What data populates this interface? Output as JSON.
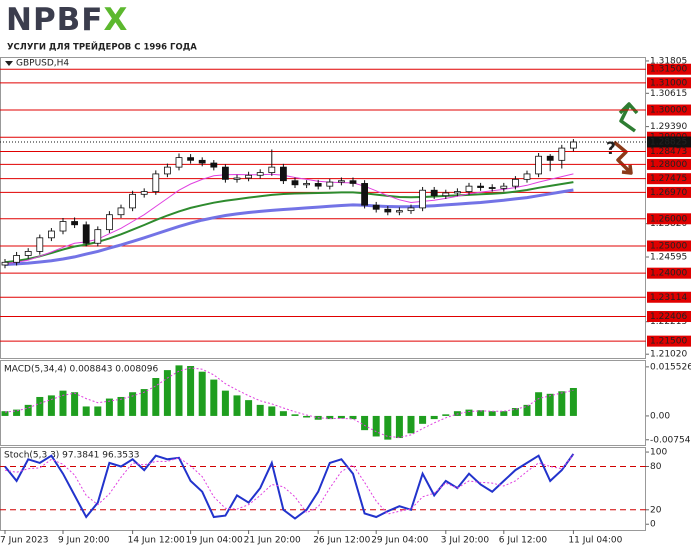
{
  "brand": {
    "name": [
      "NPBF",
      "X"
    ],
    "tagline": "УСЛУГИ ДЛЯ ТРЕЙДЕРОВ С 1996 ГОДА"
  },
  "chart_data": [
    {
      "type": "candlestick",
      "symbol": "GBPUSD,H4",
      "annotation": "?",
      "categories": [
        "7 Jun 2023",
        null,
        null,
        null,
        null,
        "9 Jun 20:00",
        null,
        null,
        null,
        null,
        null,
        "14 Jun 12:00",
        null,
        null,
        null,
        null,
        "19 Jun 04:00",
        null,
        null,
        null,
        null,
        "21 Jun 20:00",
        null,
        null,
        null,
        null,
        null,
        "26 Jun 12:00",
        null,
        null,
        null,
        null,
        "29 Jun 04:00",
        null,
        null,
        null,
        null,
        null,
        "3 Jul 20:00",
        null,
        null,
        null,
        null,
        "6 Jul 12:00",
        null,
        null,
        null,
        null,
        null,
        "11 Jul 04:00"
      ],
      "open": [
        1.243,
        1.244,
        1.2465,
        1.248,
        1.253,
        1.2555,
        1.259,
        1.2578,
        1.251,
        1.256,
        1.2615,
        1.264,
        1.269,
        1.27,
        1.2765,
        1.279,
        1.2825,
        1.2815,
        1.2805,
        1.279,
        1.2745,
        1.275,
        1.276,
        1.277,
        1.279,
        1.274,
        1.2725,
        1.273,
        1.272,
        1.2735,
        1.274,
        1.273,
        1.265,
        1.2635,
        1.2625,
        1.263,
        1.264,
        1.2705,
        1.2685,
        1.2695,
        1.27,
        1.272,
        1.2715,
        1.2712,
        1.272,
        1.2745,
        1.2765,
        1.283,
        1.2815,
        1.286
      ],
      "high": [
        1.2452,
        1.2478,
        1.2492,
        1.2542,
        1.2566,
        1.2603,
        1.2605,
        1.259,
        1.2572,
        1.2628,
        1.2652,
        1.2703,
        1.2712,
        1.2778,
        1.2803,
        1.284,
        1.2838,
        1.2826,
        1.2816,
        1.28,
        1.2762,
        1.2773,
        1.2782,
        1.2855,
        1.2802,
        1.2752,
        1.2742,
        1.2743,
        1.2747,
        1.2752,
        1.2752,
        1.2742,
        1.2662,
        1.2647,
        1.2642,
        1.2652,
        1.2717,
        1.2717,
        1.2707,
        1.2712,
        1.2732,
        1.2732,
        1.2727,
        1.2732,
        1.2757,
        1.2777,
        1.2842,
        1.2838,
        1.2872,
        1.2893
      ],
      "low": [
        1.2418,
        1.2428,
        1.2453,
        1.2468,
        1.2518,
        1.2543,
        1.2566,
        1.2498,
        1.2498,
        1.2548,
        1.2603,
        1.2628,
        1.2678,
        1.2688,
        1.2753,
        1.2778,
        1.2803,
        1.2793,
        1.2778,
        1.2733,
        1.2733,
        1.2738,
        1.2748,
        1.2758,
        1.2728,
        1.2713,
        1.2713,
        1.2708,
        1.2708,
        1.2723,
        1.2718,
        1.2638,
        1.2623,
        1.2613,
        1.2613,
        1.2618,
        1.2628,
        1.2673,
        1.2673,
        1.2683,
        1.2688,
        1.2703,
        1.27,
        1.27,
        1.2708,
        1.2733,
        1.2753,
        1.2775,
        1.2785,
        1.2848
      ],
      "close": [
        1.244,
        1.2465,
        1.248,
        1.253,
        1.2555,
        1.259,
        1.2578,
        1.251,
        1.256,
        1.2615,
        1.264,
        1.269,
        1.27,
        1.2765,
        1.279,
        1.2825,
        1.2815,
        1.2805,
        1.279,
        1.2745,
        1.275,
        1.276,
        1.277,
        1.279,
        1.274,
        1.2725,
        1.273,
        1.272,
        1.2735,
        1.274,
        1.273,
        1.265,
        1.2635,
        1.2625,
        1.263,
        1.264,
        1.2705,
        1.2685,
        1.2695,
        1.27,
        1.272,
        1.2715,
        1.2712,
        1.272,
        1.2745,
        1.2765,
        1.283,
        1.2815,
        1.286,
        1.28825
      ],
      "series": [
        {
          "color": "#7373e6",
          "width": 3,
          "values": [
            1.2432,
            1.2434,
            1.2437,
            1.2441,
            1.2446,
            1.2452,
            1.246,
            1.247,
            1.248,
            1.2492,
            1.2504,
            1.2517,
            1.253,
            1.2544,
            1.2558,
            1.2572,
            1.2584,
            1.2595,
            1.2604,
            1.2612,
            1.2618,
            1.2623,
            1.2627,
            1.2631,
            1.2634,
            1.2637,
            1.264,
            1.2643,
            1.2646,
            1.2649,
            1.2651,
            1.265,
            1.2647,
            1.2645,
            1.2644,
            1.2644,
            1.2646,
            1.2648,
            1.2651,
            1.2654,
            1.2657,
            1.266,
            1.2664,
            1.2668,
            1.2673,
            1.2678,
            1.2685,
            1.2692,
            1.2699,
            1.2706
          ]
        },
        {
          "color": "#2e8b2e",
          "width": 2,
          "values": [
            1.244,
            1.2445,
            1.2452,
            1.2462,
            1.2474,
            1.2487,
            1.2498,
            1.2505,
            1.2515,
            1.2528,
            1.2543,
            1.256,
            1.2577,
            1.2595,
            1.2612,
            1.2627,
            1.264,
            1.265,
            1.2659,
            1.2666,
            1.2672,
            1.2678,
            1.2683,
            1.2688,
            1.2691,
            1.2693,
            1.2694,
            1.2695,
            1.2696,
            1.2697,
            1.2697,
            1.2694,
            1.2689,
            1.2684,
            1.268,
            1.2679,
            1.268,
            1.2682,
            1.2684,
            1.2686,
            1.2688,
            1.269,
            1.2692,
            1.2695,
            1.27,
            1.2706,
            1.2714,
            1.2721,
            1.2728,
            1.2735
          ]
        },
        {
          "color": "#e040e0",
          "width": 1,
          "values": [
            1.2435,
            1.244,
            1.2448,
            1.2462,
            1.2478,
            1.2495,
            1.251,
            1.2515,
            1.2525,
            1.2545,
            1.2565,
            1.259,
            1.2615,
            1.2645,
            1.2675,
            1.2705,
            1.2728,
            1.2745,
            1.2758,
            1.2762,
            1.2763,
            1.2762,
            1.2762,
            1.2764,
            1.276,
            1.2752,
            1.2745,
            1.2738,
            1.2735,
            1.2733,
            1.2732,
            1.272,
            1.2703,
            1.2685,
            1.267,
            1.266,
            1.2664,
            1.2668,
            1.2675,
            1.2683,
            1.2692,
            1.2698,
            1.2703,
            1.2708,
            1.2715,
            1.2723,
            1.2735,
            1.2745,
            1.2755,
            1.2765
          ]
        }
      ],
      "levels": {
        "color": "#e00000",
        "values": [
          {
            "value": 1.315,
            "label": "1.31500"
          },
          {
            "value": 1.31,
            "label": "1.31000"
          },
          {
            "value": 1.3,
            "label": "1.30000"
          },
          {
            "value": 1.29,
            "label": "1.29000"
          },
          1.28473,
          {
            "value": 1.28,
            "label": "1.28000"
          },
          1.27475,
          {
            "value": 1.2697,
            "label": "1.26970"
          },
          {
            "value": 1.26,
            "label": "1.26000"
          },
          {
            "value": 1.25,
            "label": "1.25000"
          },
          {
            "value": 1.24,
            "label": "1.24000"
          },
          1.23114,
          1.22406,
          {
            "value": 1.215,
            "label": "1.21500"
          }
        ]
      },
      "last_price": 1.28825,
      "ylim": [
        1.2088,
        1.3195
      ],
      "yticks": [
        1.31805,
        1.30615,
        {
          "value": 1.2939,
          "label": "1.29390"
        },
        {
          "value": 1.2582,
          "label": "1.25820"
        },
        1.24595,
        1.22215,
        {
          "value": 1.2102,
          "label": "1.21020"
        }
      ]
    },
    {
      "type": "bar",
      "title": "MACD(5,34,4) 0.008843 0.008096",
      "color": "#1f9e1f",
      "values": [
        0.0015,
        0.002,
        0.0035,
        0.006,
        0.0065,
        0.008,
        0.0075,
        0.003,
        0.003,
        0.0055,
        0.006,
        0.0075,
        0.0085,
        0.012,
        0.0145,
        0.016,
        0.0158,
        0.014,
        0.0115,
        0.008,
        0.0065,
        0.005,
        0.0035,
        0.003,
        0.0015,
        0.0005,
        -0.0005,
        -0.0012,
        -0.001,
        -0.0008,
        -0.001,
        -0.0045,
        -0.0065,
        -0.0075,
        -0.007,
        -0.0055,
        -0.0025,
        -0.001,
        0.0005,
        0.0015,
        0.002,
        0.0018,
        0.0015,
        0.0015,
        0.0025,
        0.0035,
        0.0075,
        0.007,
        0.0078,
        0.008843
      ],
      "series": [
        {
          "color": "#e040e0",
          "values": [
            0.0012,
            0.0016,
            0.0025,
            0.004,
            0.0052,
            0.0065,
            0.0072,
            0.0055,
            0.0042,
            0.0047,
            0.0053,
            0.0063,
            0.0075,
            0.0095,
            0.012,
            0.0142,
            0.0152,
            0.0148,
            0.013,
            0.0102,
            0.0082,
            0.0064,
            0.0048,
            0.0038,
            0.0025,
            0.0013,
            0.0003,
            -0.0006,
            -0.0008,
            -0.0008,
            -0.0009,
            -0.003,
            -0.005,
            -0.0065,
            -0.0068,
            -0.006,
            -0.004,
            -0.0022,
            -0.0006,
            0.0006,
            0.0014,
            0.0016,
            0.0015,
            0.0015,
            0.0021,
            0.003,
            0.0055,
            0.0064,
            0.0073,
            0.008096
          ]
        }
      ],
      "ylim": [
        -0.0092,
        0.0177
      ],
      "yticks": [
        0.015526,
        {
          "value": 0,
          "label": "0.00"
        },
        -0.007543
      ]
    },
    {
      "type": "line",
      "title": "Stoch(5,3,3) 97.3841 96.3533",
      "series": [
        {
          "color": "#2233cc",
          "width": 2,
          "values": [
            80,
            60,
            90,
            85,
            95,
            70,
            40,
            10,
            30,
            85,
            80,
            90,
            75,
            95,
            90,
            92,
            60,
            45,
            10,
            12,
            40,
            30,
            50,
            85,
            20,
            8,
            20,
            45,
            85,
            90,
            70,
            15,
            10,
            18,
            25,
            20,
            70,
            40,
            60,
            50,
            70,
            55,
            45,
            60,
            75,
            85,
            95,
            60,
            75,
            97.3841
          ]
        },
        {
          "color": "#e040e0",
          "width": 1,
          "dashed": true,
          "values": [
            75,
            72,
            77,
            78,
            90,
            83,
            68,
            40,
            27,
            42,
            65,
            85,
            82,
            87,
            87,
            92,
            81,
            66,
            38,
            22,
            21,
            27,
            40,
            55,
            52,
            38,
            16,
            24,
            50,
            73,
            82,
            58,
            32,
            14,
            18,
            21,
            38,
            43,
            57,
            50,
            60,
            58,
            57,
            53,
            60,
            73,
            85,
            80,
            77,
            96.3533
          ]
        }
      ],
      "levels": {
        "color": "#d00000",
        "values": [
          80,
          20
        ]
      },
      "ylim": [
        -8,
        107
      ],
      "yticks": [
        100,
        80,
        20,
        0
      ]
    }
  ]
}
